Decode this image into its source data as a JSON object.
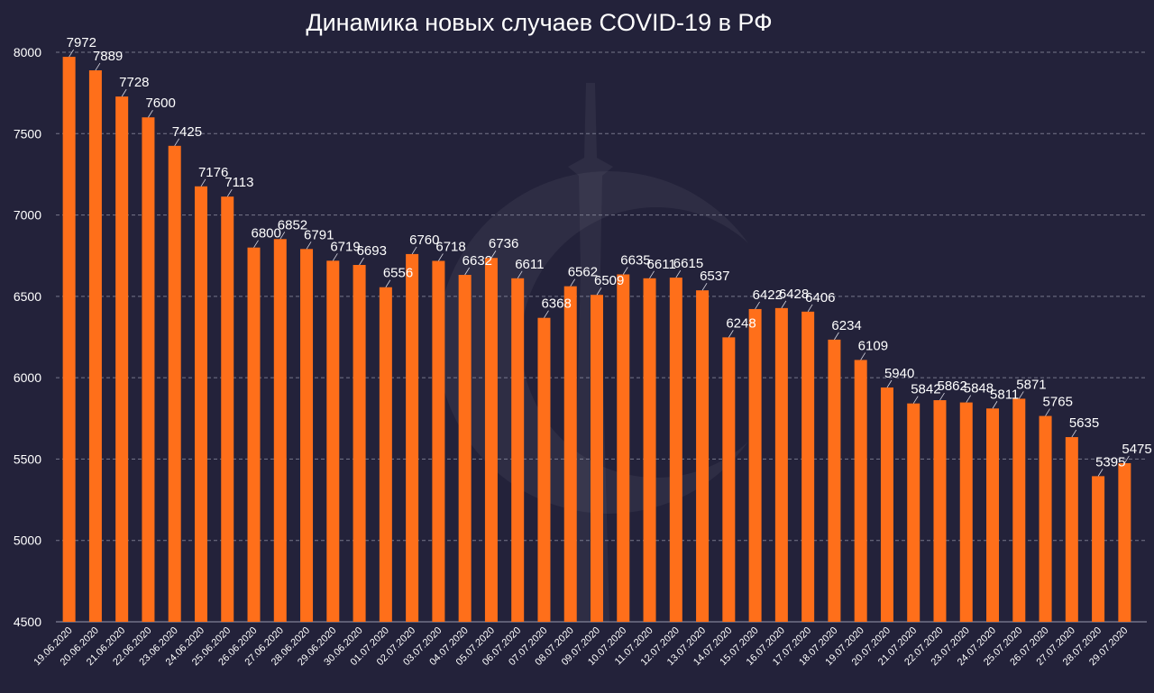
{
  "colors": {
    "background": "#23223a",
    "bar": "#ff6f1a",
    "text": "#ffffff",
    "grid": "#9a9aae"
  },
  "chart_data": {
    "type": "bar",
    "title": "Динамика новых случаев COVID-19 в РФ",
    "xlabel": "",
    "ylabel": "",
    "ylim": [
      4500,
      8000
    ],
    "yticks": [
      4500,
      5000,
      5500,
      6000,
      6500,
      7000,
      7500,
      8000
    ],
    "grid": true,
    "legend": "none",
    "categories": [
      "19.06.2020",
      "20.06.2020",
      "21.06.2020",
      "22.06.2020",
      "23.06.2020",
      "24.06.2020",
      "25.06.2020",
      "26.06.2020",
      "27.06.2020",
      "28.06.2020",
      "29.06.2020",
      "30.06.2020",
      "01.07.2020",
      "02.07.2020",
      "03.07.2020",
      "04.07.2020",
      "05.07.2020",
      "06.07.2020",
      "07.07.2020",
      "08.07.2020",
      "09.07.2020",
      "10.07.2020",
      "11.07.2020",
      "12.07.2020",
      "13.07.2020",
      "14.07.2020",
      "15.07.2020",
      "16.07.2020",
      "17.07.2020",
      "18.07.2020",
      "19.07.2020",
      "20.07.2020",
      "21.07.2020",
      "22.07.2020",
      "23.07.2020",
      "24.07.2020",
      "25.07.2020",
      "26.07.2020",
      "27.07.2020",
      "28.07.2020",
      "29.07.2020"
    ],
    "values": [
      7972,
      7889,
      7728,
      7600,
      7425,
      7176,
      7113,
      6800,
      6852,
      6791,
      6719,
      6693,
      6556,
      6760,
      6718,
      6632,
      6736,
      6611,
      6368,
      6562,
      6509,
      6635,
      6611,
      6615,
      6537,
      6248,
      6422,
      6428,
      6406,
      6234,
      6109,
      5940,
      5842,
      5862,
      5848,
      5811,
      5871,
      5765,
      5635,
      5395,
      5475
    ]
  }
}
